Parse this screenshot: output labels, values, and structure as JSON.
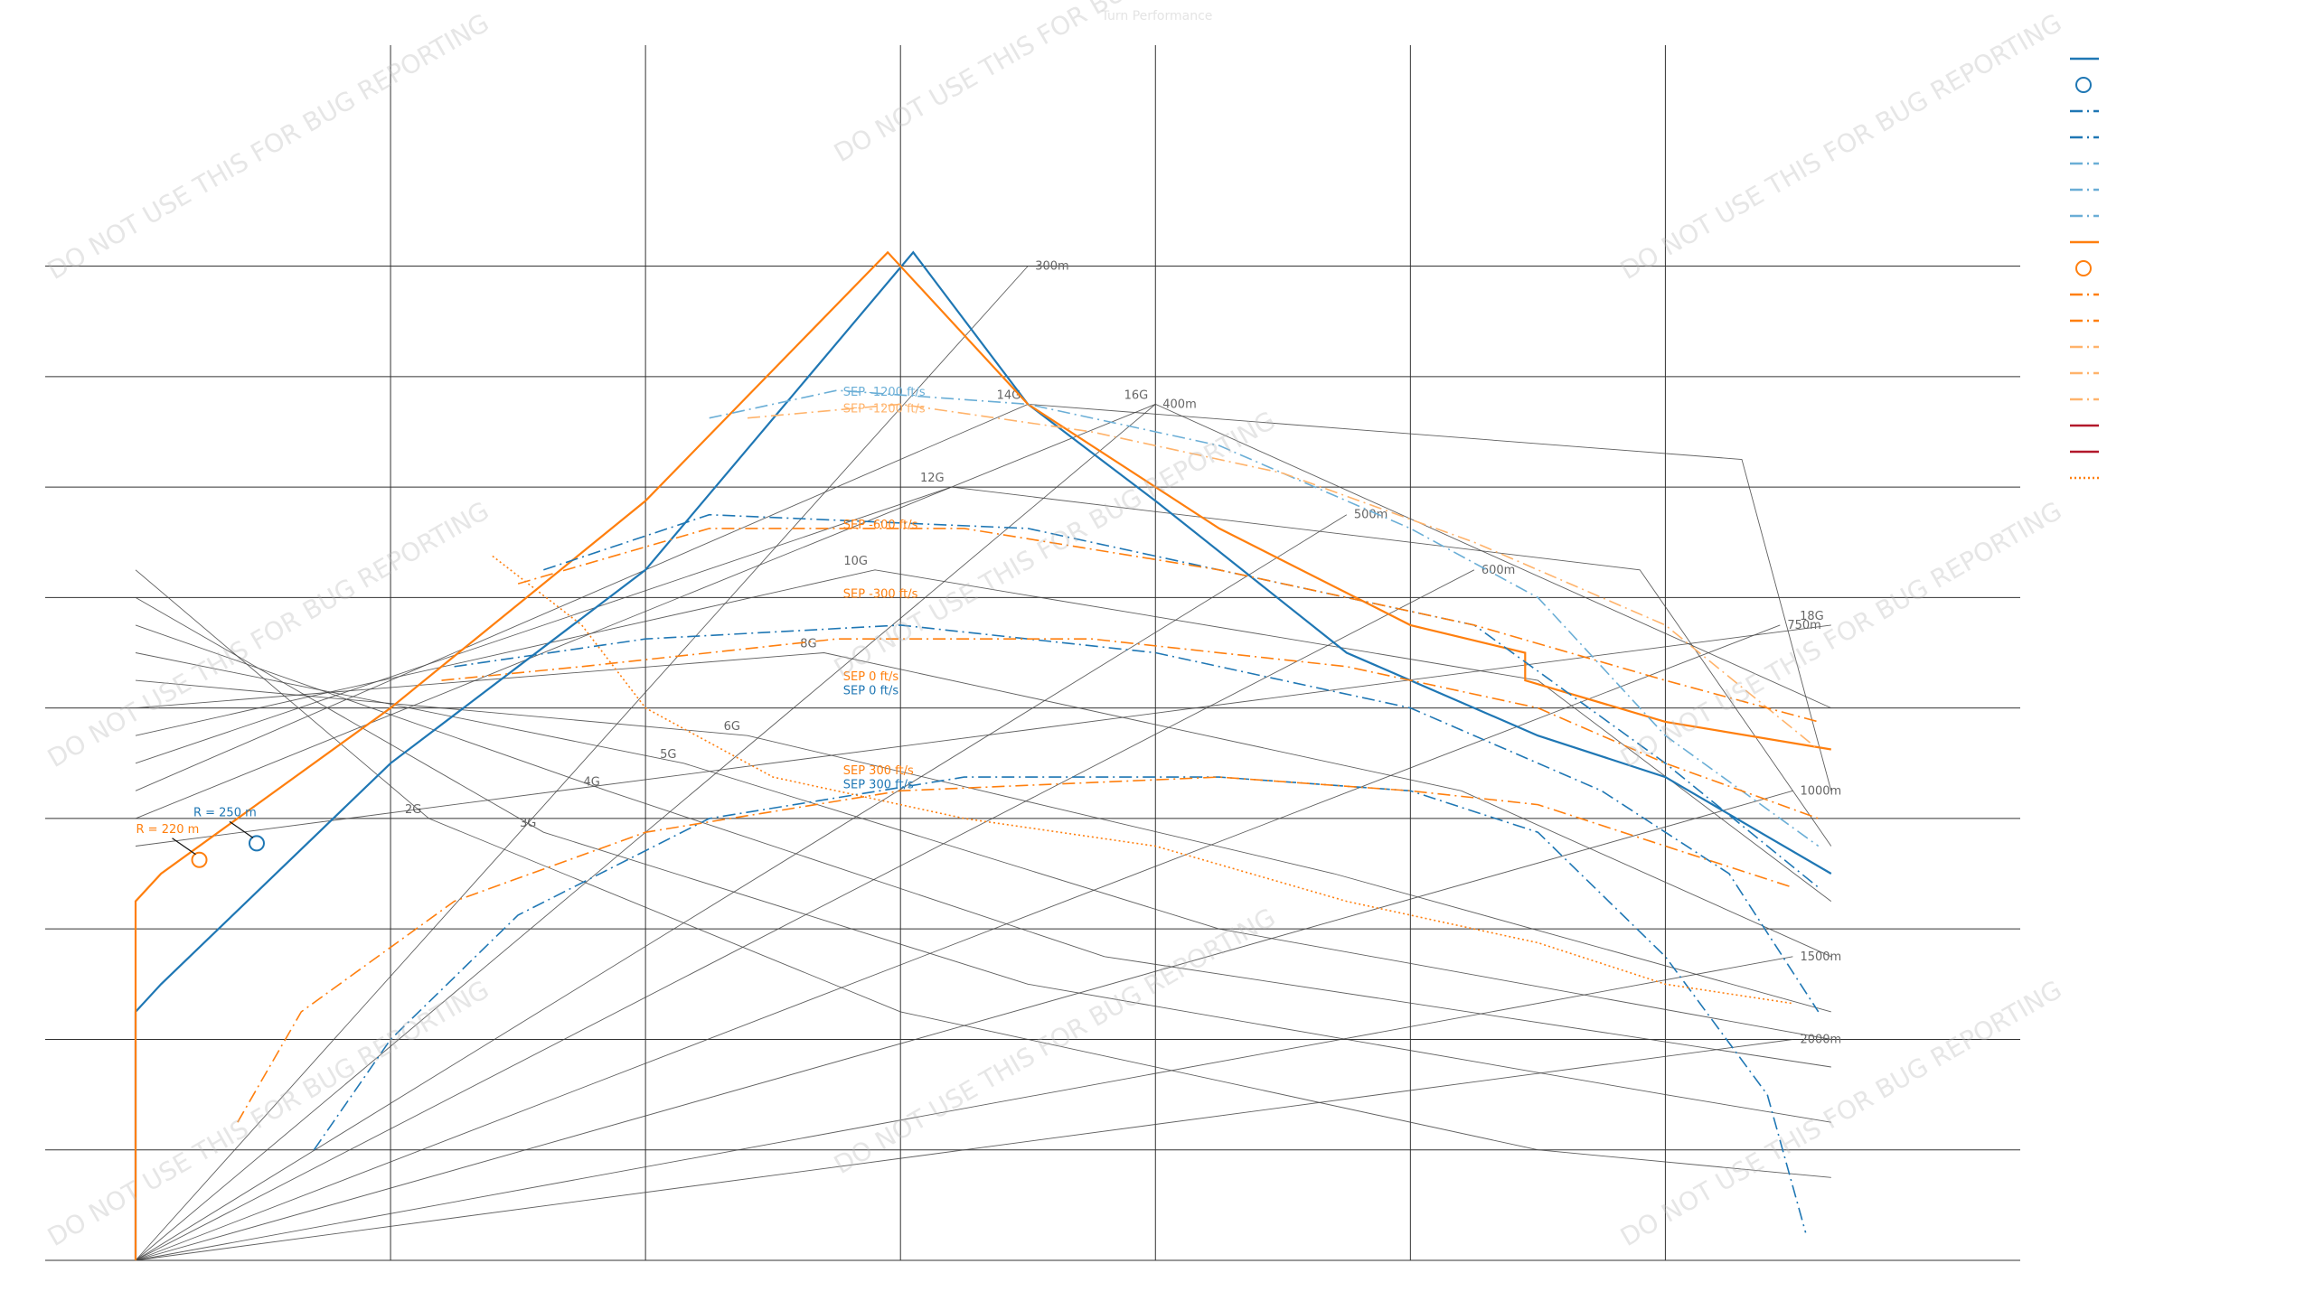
{
  "title": "Turn Performance",
  "watermark": "DO NOT USE THIS FOR BUG REPORTING",
  "colors": {
    "blue": "#1f77b4",
    "orange": "#ff7f0e",
    "light_blue": "#6aaed6",
    "light_orange": "#ffb36b",
    "red": "#b2182b",
    "grid": "#333333",
    "ref": "#555555"
  },
  "chart_data": {
    "type": "line",
    "title": "Turn Performance",
    "xlabel": "",
    "ylabel": "",
    "xlim": [
      0,
      1450
    ],
    "ylim": [
      0,
      44
    ],
    "x_ticks": [
      200,
      400,
      600,
      800,
      1000,
      1200
    ],
    "y_ticks": [
      4,
      8,
      12,
      16,
      20,
      24,
      28,
      32,
      36
    ],
    "grid": true,
    "legend_placement": "right",
    "reference_lines": {
      "g_lines": [
        {
          "label": "2G",
          "points": [
            [
              0,
              25
            ],
            [
              230,
              16
            ],
            [
              600,
              9
            ],
            [
              1100,
              4
            ],
            [
              1330,
              3
            ]
          ]
        },
        {
          "label": "3G",
          "points": [
            [
              0,
              24
            ],
            [
              320,
              15.5
            ],
            [
              700,
              10
            ],
            [
              1200,
              6
            ],
            [
              1330,
              5
            ]
          ]
        },
        {
          "label": "4G",
          "points": [
            [
              0,
              23
            ],
            [
              370,
              17
            ],
            [
              760,
              11
            ],
            [
              1330,
              7
            ]
          ]
        },
        {
          "label": "5G",
          "points": [
            [
              0,
              22
            ],
            [
              430,
              18
            ],
            [
              850,
              12
            ],
            [
              1330,
              8
            ]
          ]
        },
        {
          "label": "6G",
          "points": [
            [
              0,
              21
            ],
            [
              480,
              19
            ],
            [
              940,
              14
            ],
            [
              1330,
              9
            ]
          ]
        },
        {
          "label": "8G",
          "points": [
            [
              0,
              20
            ],
            [
              540,
              22
            ],
            [
              1040,
              17
            ],
            [
              1330,
              11
            ]
          ]
        },
        {
          "label": "10G",
          "points": [
            [
              0,
              19
            ],
            [
              580,
              25
            ],
            [
              1100,
              21
            ],
            [
              1330,
              13
            ]
          ]
        },
        {
          "label": "12G",
          "points": [
            [
              0,
              18
            ],
            [
              640,
              28
            ],
            [
              1180,
              25
            ],
            [
              1330,
              15
            ]
          ]
        },
        {
          "label": "14G",
          "points": [
            [
              0,
              17
            ],
            [
              700,
              31
            ],
            [
              1260,
              29
            ],
            [
              1330,
              17
            ]
          ]
        },
        {
          "label": "16G",
          "points": [
            [
              0,
              16
            ],
            [
              800,
              31
            ],
            [
              1330,
              20
            ]
          ]
        },
        {
          "label": "18G",
          "points": [
            [
              0,
              15
            ],
            [
              1330,
              23
            ]
          ]
        }
      ],
      "radius_lines": [
        {
          "label": "300m",
          "points": [
            [
              0,
              0
            ],
            [
              700,
              36
            ]
          ]
        },
        {
          "label": "400m",
          "points": [
            [
              0,
              0
            ],
            [
              800,
              31
            ]
          ]
        },
        {
          "label": "500m",
          "points": [
            [
              0,
              0
            ],
            [
              950,
              27
            ]
          ]
        },
        {
          "label": "600m",
          "points": [
            [
              0,
              0
            ],
            [
              1050,
              25
            ]
          ]
        },
        {
          "label": "750m",
          "points": [
            [
              0,
              0
            ],
            [
              1290,
              23
            ]
          ]
        },
        {
          "label": "1000m",
          "points": [
            [
              0,
              0
            ],
            [
              1300,
              17
            ]
          ]
        },
        {
          "label": "1500m",
          "points": [
            [
              0,
              0
            ],
            [
              1300,
              11
            ]
          ]
        },
        {
          "label": "2000m",
          "points": [
            [
              0,
              0
            ],
            [
              1300,
              8
            ]
          ]
        }
      ]
    },
    "series": [
      {
        "color": "#1f77b4",
        "dash": "solid",
        "width": 2.2,
        "points": [
          [
            0,
            0
          ],
          [
            0,
            9
          ],
          [
            20,
            10
          ],
          [
            200,
            18
          ],
          [
            400,
            25
          ],
          [
            610,
            36.5
          ],
          [
            700,
            31
          ],
          [
            800,
            27.5
          ],
          [
            950,
            22
          ],
          [
            1100,
            19
          ],
          [
            1200,
            17.5
          ],
          [
            1330,
            14
          ]
        ]
      },
      {
        "color": "#ff7f0e",
        "dash": "solid",
        "width": 2.2,
        "points": [
          [
            0,
            0
          ],
          [
            0,
            13
          ],
          [
            20,
            14
          ],
          [
            200,
            20
          ],
          [
            400,
            27.5
          ],
          [
            590,
            36.5
          ],
          [
            700,
            31
          ],
          [
            850,
            26.5
          ],
          [
            1000,
            23
          ],
          [
            1090,
            22
          ],
          [
            1090,
            21
          ],
          [
            1200,
            19.5
          ],
          [
            1330,
            18.5
          ]
        ]
      },
      {
        "color": "#6aaed6",
        "dash": "dashdot",
        "width": 1.6,
        "points": [
          [
            450,
            30.5
          ],
          [
            550,
            31.5
          ],
          [
            700,
            31
          ],
          [
            850,
            29.5
          ],
          [
            1000,
            26.5
          ],
          [
            1100,
            24
          ],
          [
            1200,
            19
          ],
          [
            1320,
            15
          ]
        ]
      },
      {
        "color": "#ffb36b",
        "dash": "dashdot",
        "width": 1.6,
        "points": [
          [
            480,
            30.5
          ],
          [
            600,
            31
          ],
          [
            750,
            30
          ],
          [
            900,
            28.5
          ],
          [
            1050,
            26
          ],
          [
            1200,
            23
          ],
          [
            1320,
            18.5
          ]
        ]
      },
      {
        "color": "#1f77b4",
        "dash": "dashdot",
        "width": 1.6,
        "points": [
          [
            320,
            25
          ],
          [
            450,
            27
          ],
          [
            700,
            26.5
          ],
          [
            900,
            24.5
          ],
          [
            1050,
            23
          ],
          [
            1200,
            18
          ],
          [
            1320,
            13.5
          ]
        ]
      },
      {
        "color": "#ff7f0e",
        "dash": "dashdot",
        "width": 1.6,
        "points": [
          [
            300,
            24.5
          ],
          [
            450,
            26.5
          ],
          [
            650,
            26.5
          ],
          [
            850,
            25
          ],
          [
            1050,
            23
          ],
          [
            1200,
            21
          ],
          [
            1320,
            19.5
          ]
        ]
      },
      {
        "color": "#1f77b4",
        "dash": "dashdot",
        "width": 1.6,
        "points": [
          [
            250,
            21.5
          ],
          [
            400,
            22.5
          ],
          [
            600,
            23
          ],
          [
            800,
            22
          ],
          [
            1000,
            20
          ],
          [
            1150,
            17
          ],
          [
            1250,
            14
          ],
          [
            1320,
            9
          ]
        ]
      },
      {
        "color": "#ff7f0e",
        "dash": "dashdot",
        "width": 1.6,
        "points": [
          [
            240,
            21
          ],
          [
            350,
            21.5
          ],
          [
            550,
            22.5
          ],
          [
            750,
            22.5
          ],
          [
            950,
            21.5
          ],
          [
            1100,
            20
          ],
          [
            1200,
            18
          ],
          [
            1320,
            16
          ]
        ]
      },
      {
        "color": "#1f77b4",
        "dash": "dashdot",
        "width": 1.6,
        "points": [
          [
            140,
            4
          ],
          [
            200,
            8
          ],
          [
            300,
            12.5
          ],
          [
            450,
            16
          ],
          [
            650,
            17.5
          ],
          [
            850,
            17.5
          ],
          [
            1000,
            17
          ],
          [
            1100,
            15.5
          ],
          [
            1200,
            11
          ],
          [
            1280,
            6
          ],
          [
            1310,
            1
          ]
        ]
      },
      {
        "color": "#ff7f0e",
        "dash": "dashdot",
        "width": 1.6,
        "points": [
          [
            80,
            5
          ],
          [
            130,
            9
          ],
          [
            250,
            13
          ],
          [
            400,
            15.5
          ],
          [
            600,
            17
          ],
          [
            850,
            17.5
          ],
          [
            1000,
            17
          ],
          [
            1100,
            16.5
          ],
          [
            1200,
            15
          ],
          [
            1300,
            13.5
          ]
        ]
      },
      {
        "color": "#ff7f0e",
        "dash": "dotted",
        "width": 1.6,
        "points": [
          [
            280,
            25.5
          ],
          [
            350,
            23
          ],
          [
            400,
            20
          ],
          [
            500,
            17.5
          ],
          [
            650,
            16
          ],
          [
            800,
            15
          ],
          [
            950,
            13
          ],
          [
            1100,
            11.5
          ],
          [
            1200,
            10
          ],
          [
            1300,
            9.3
          ]
        ]
      }
    ],
    "markers": [
      {
        "color": "#ff7f0e",
        "x": 50,
        "y": 14.5,
        "label": "R = 220 m"
      },
      {
        "color": "#1f77b4",
        "x": 95,
        "y": 15.1,
        "label": "R = 250 m"
      }
    ],
    "annotations": [
      {
        "text": "SEP -1200 ft/s",
        "x": 555,
        "y": 31.3,
        "color": "#6aaed6"
      },
      {
        "text": "SEP -1200 ft/s",
        "x": 555,
        "y": 30.7,
        "color": "#ffb36b"
      },
      {
        "text": "SEP -600 ft/s",
        "x": 555,
        "y": 26.5,
        "color": "#ff7f0e"
      },
      {
        "text": "SEP -300 ft/s",
        "x": 555,
        "y": 24,
        "color": "#ff7f0e"
      },
      {
        "text": "SEP 0 ft/s",
        "x": 555,
        "y": 21,
        "color": "#ff7f0e"
      },
      {
        "text": "SEP 0 ft/s",
        "x": 555,
        "y": 20.5,
        "color": "#1f77b4"
      },
      {
        "text": "SEP 300 ft/s",
        "x": 555,
        "y": 17.6,
        "color": "#ff7f0e"
      },
      {
        "text": "SEP 300 ft/s",
        "x": 555,
        "y": 17.1,
        "color": "#1f77b4"
      }
    ]
  },
  "legend": [
    {
      "color": "#1f77b4",
      "dash": "solid",
      "marker": false
    },
    {
      "color": "#1f77b4",
      "dash": "none",
      "marker": true
    },
    {
      "color": "#1f77b4",
      "dash": "dashdot",
      "marker": false
    },
    {
      "color": "#1f77b4",
      "dash": "dashdot",
      "marker": false
    },
    {
      "color": "#6aaed6",
      "dash": "dashdot",
      "marker": false
    },
    {
      "color": "#6aaed6",
      "dash": "dashdot",
      "marker": false
    },
    {
      "color": "#6aaed6",
      "dash": "dashdot",
      "marker": false
    },
    {
      "color": "#ff7f0e",
      "dash": "solid",
      "marker": false
    },
    {
      "color": "#ff7f0e",
      "dash": "none",
      "marker": true
    },
    {
      "color": "#ff7f0e",
      "dash": "dashdot",
      "marker": false
    },
    {
      "color": "#ff7f0e",
      "dash": "dashdot",
      "marker": false
    },
    {
      "color": "#ffb36b",
      "dash": "dashdot",
      "marker": false
    },
    {
      "color": "#ffb36b",
      "dash": "dashdot",
      "marker": false
    },
    {
      "color": "#ffb36b",
      "dash": "dashdot",
      "marker": false
    },
    {
      "color": "#b2182b",
      "dash": "solid",
      "marker": false
    },
    {
      "color": "#b2182b",
      "dash": "solid",
      "marker": false
    },
    {
      "color": "#ff7f0e",
      "dash": "dotted",
      "marker": false
    }
  ]
}
